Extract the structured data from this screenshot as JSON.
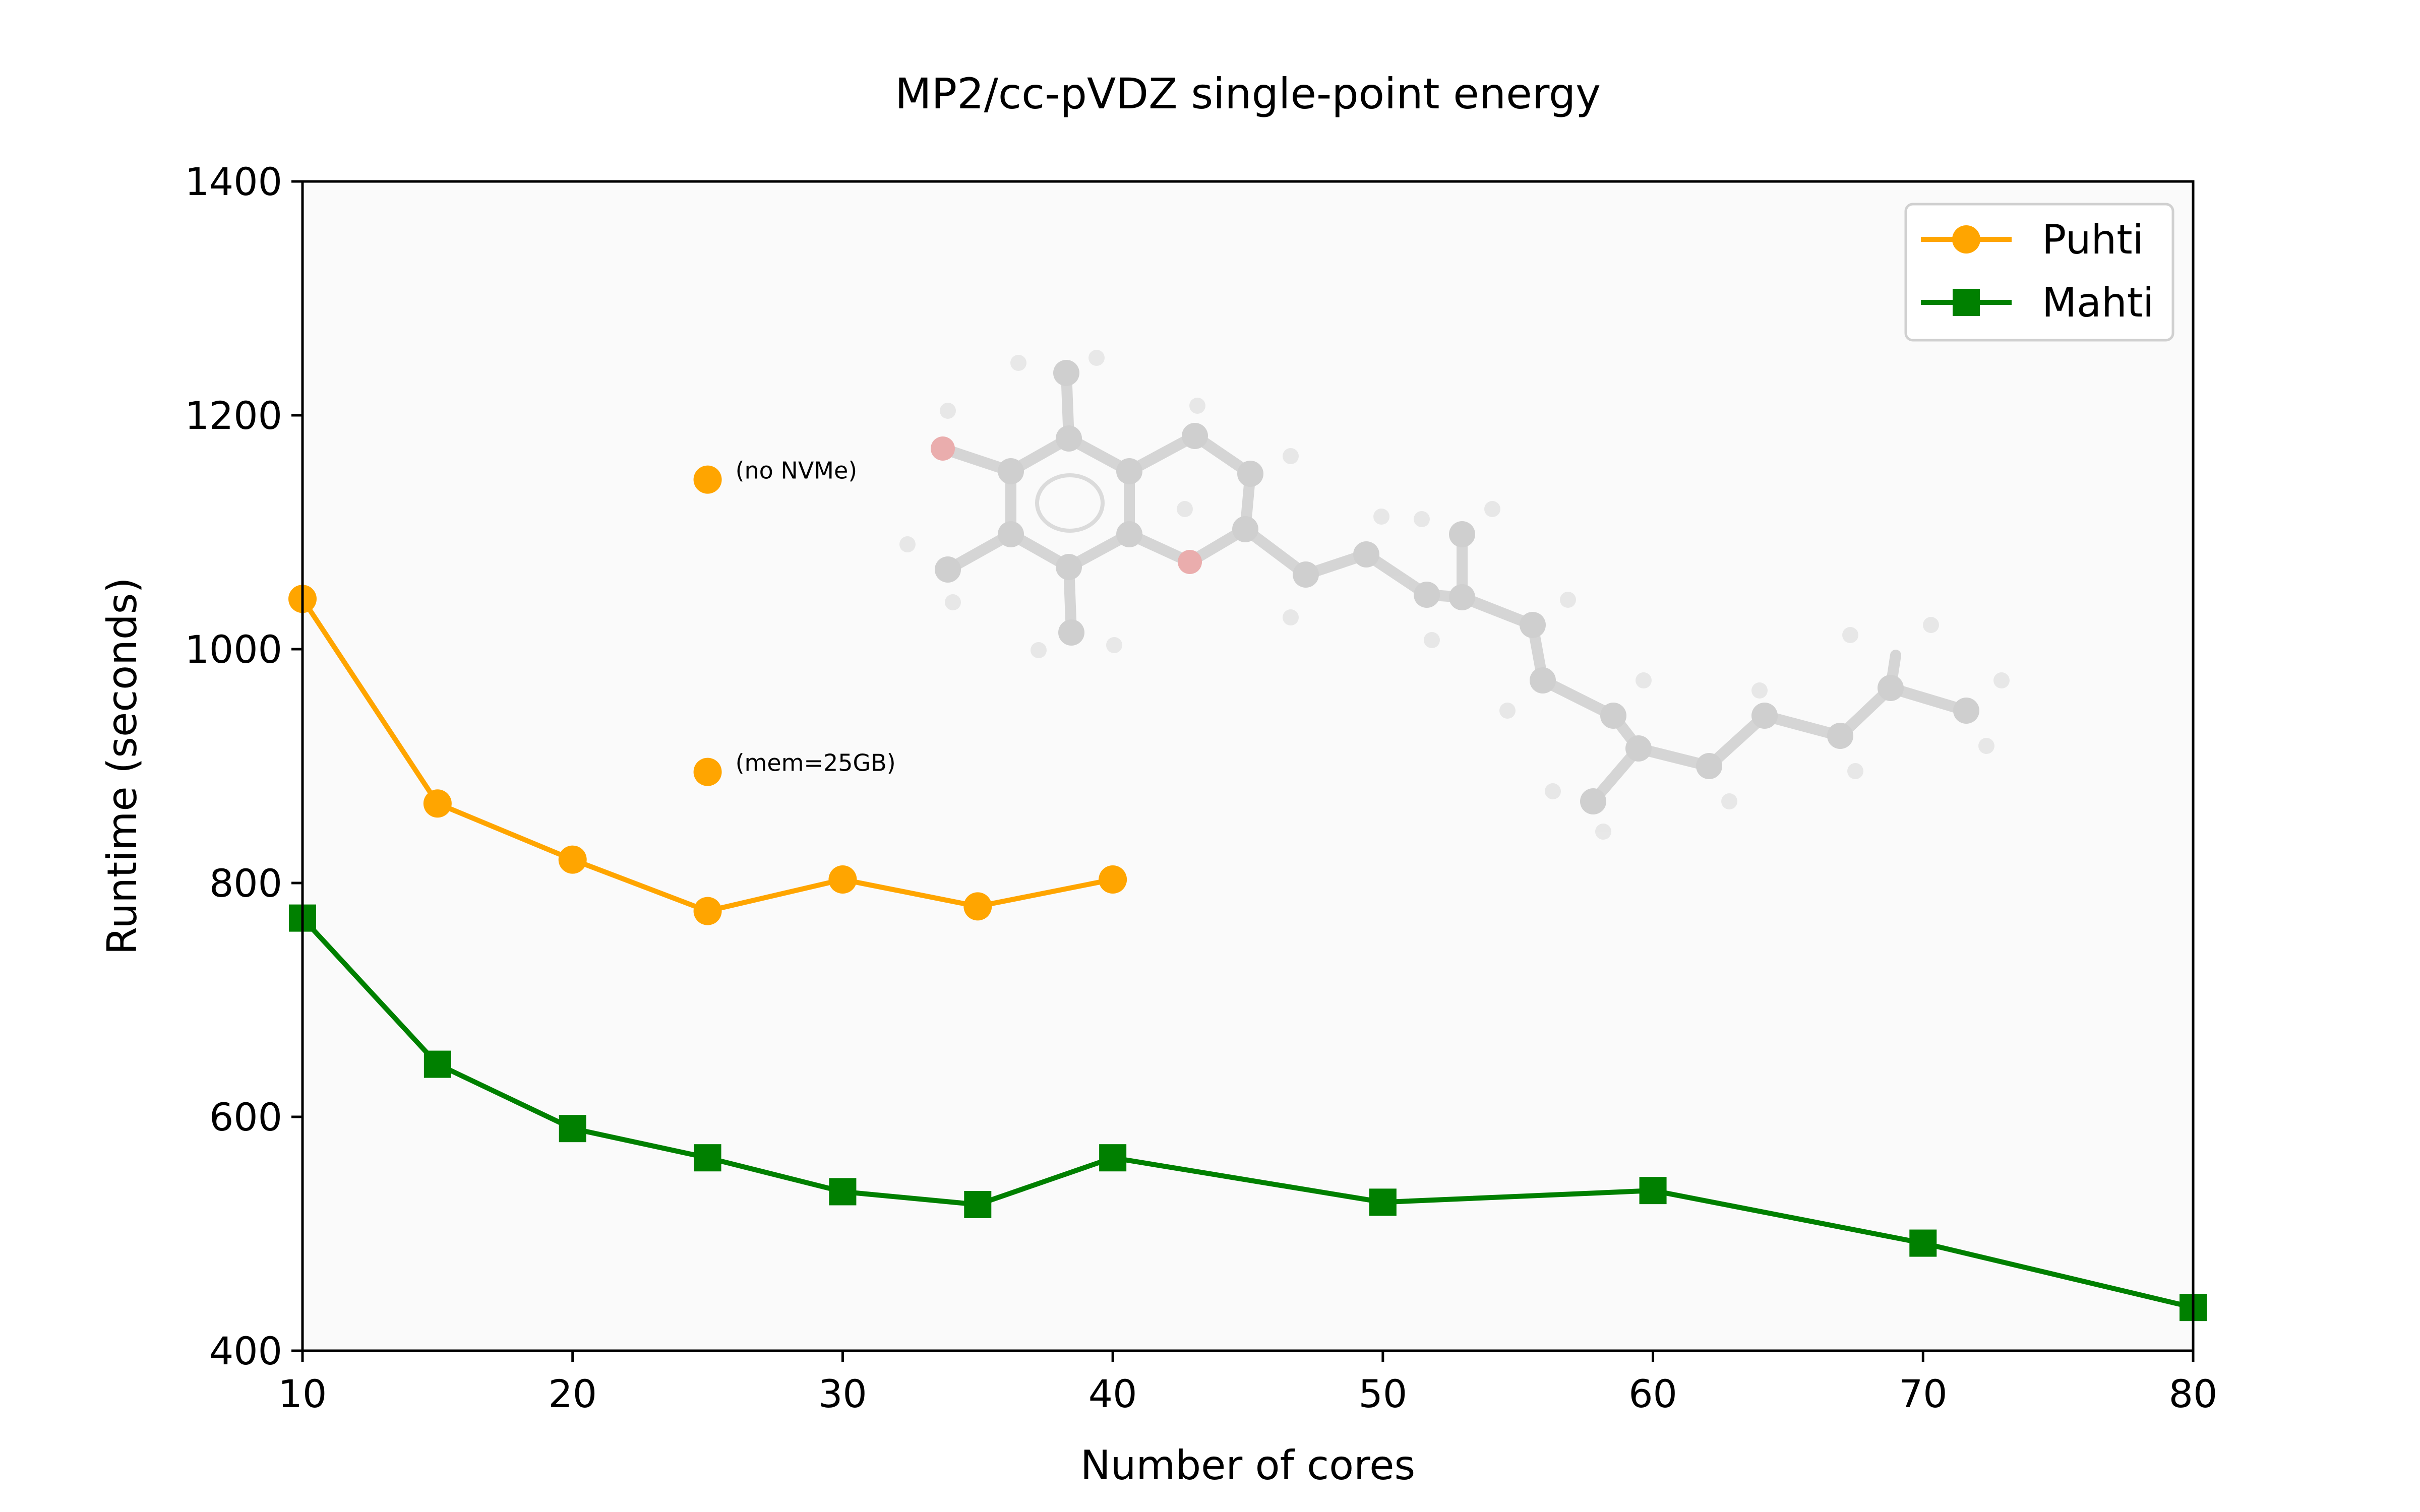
{
  "chart_data": {
    "type": "line",
    "title": "MP2/cc-pVDZ single-point energy",
    "xlabel": "Number of cores",
    "ylabel": "Runtime (seconds)",
    "xlim": [
      10,
      80
    ],
    "ylim": [
      400,
      1400
    ],
    "xticks": [
      10,
      20,
      30,
      40,
      50,
      60,
      70,
      80
    ],
    "yticks": [
      400,
      600,
      800,
      1000,
      1200,
      1400
    ],
    "grid": false,
    "legend_position": "top-right",
    "series": [
      {
        "name": "Puhti",
        "color": "#ffa500",
        "marker": "circle",
        "x": [
          10,
          15,
          20,
          25,
          30,
          35,
          40
        ],
        "y": [
          1043,
          868,
          820,
          776,
          803,
          780,
          803
        ]
      },
      {
        "name": "Mahti",
        "color": "#008000",
        "marker": "square",
        "x": [
          10,
          15,
          20,
          25,
          30,
          35,
          40,
          50,
          60,
          70,
          80
        ],
        "y": [
          770,
          645,
          590,
          565,
          536,
          525,
          565,
          527,
          537,
          492,
          437
        ]
      }
    ],
    "extra_points": [
      {
        "x": 25,
        "y": 1145,
        "label": "(no NVMe)",
        "color": "#ffa500"
      },
      {
        "x": 25,
        "y": 895,
        "label": "(mem=25GB)",
        "color": "#ffa500"
      }
    ]
  },
  "colors": {
    "plot_background": "#fafafa",
    "molecule_atom": "#c8c8c8",
    "molecule_oxygen": "#e8a0a0"
  }
}
